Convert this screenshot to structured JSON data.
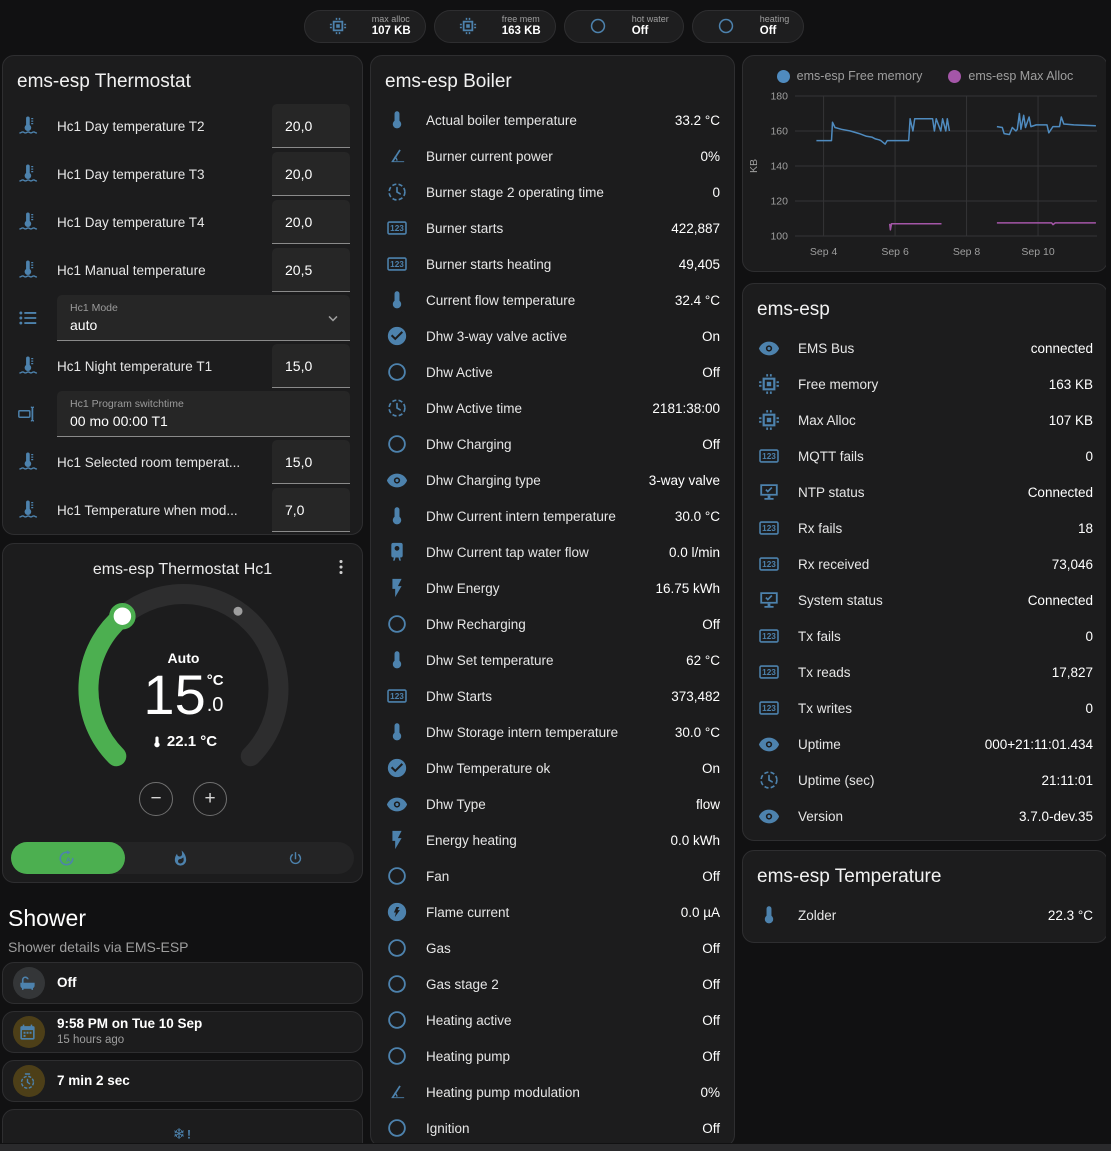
{
  "colors": {
    "accent_green": "#4caf50",
    "entity_icon_blue": "#4d82ad",
    "chip_icon_blue": "#2196f3",
    "chip_icon_gray": "#9e9e9e",
    "amber": "#ffc107",
    "tile_gray": "#9da0a2",
    "snowflake_blue": "#4d8fd1",
    "track_gray": "#2d2d2e",
    "knob_white": "#ffffff"
  },
  "header": {
    "chips": [
      {
        "icon": "chip",
        "color": "blue",
        "label": "max alloc",
        "value": "107 KB"
      },
      {
        "icon": "chip",
        "color": "blue",
        "label": "free mem",
        "value": "163 KB"
      },
      {
        "icon": "circle",
        "color": "gray",
        "label": "hot water",
        "value": "Off"
      },
      {
        "icon": "circle",
        "color": "gray",
        "label": "heating",
        "value": "Off"
      }
    ]
  },
  "thermostat": {
    "title": "ems-esp Thermostat",
    "rows": [
      {
        "type": "number",
        "icon": "thermometer-waves",
        "label": "Hc1 Day temperature T2",
        "value": "20,0"
      },
      {
        "type": "number",
        "icon": "thermometer-waves",
        "label": "Hc1 Day temperature T3",
        "value": "20,0"
      },
      {
        "type": "number",
        "icon": "thermometer-waves",
        "label": "Hc1 Day temperature T4",
        "value": "20,0"
      },
      {
        "type": "number",
        "icon": "thermometer-waves",
        "label": "Hc1 Manual temperature",
        "value": "20,5"
      },
      {
        "type": "select",
        "icon": "list",
        "field_label": "Hc1 Mode",
        "value": "auto"
      },
      {
        "type": "number",
        "icon": "thermometer-waves",
        "label": "Hc1 Night temperature T1",
        "value": "15,0"
      },
      {
        "type": "text",
        "icon": "form-textbox",
        "field_label": "Hc1 Program switchtime",
        "value": "00 mo 00:00 T1"
      },
      {
        "type": "number",
        "icon": "thermometer-waves",
        "label": "Hc1 Selected room temperat...",
        "value": "15,0"
      },
      {
        "type": "number",
        "icon": "thermometer-waves",
        "label": "Hc1 Temperature when mod...",
        "value": "7,0"
      }
    ]
  },
  "dial": {
    "title": "ems-esp Thermostat Hc1",
    "mode_label": "Auto",
    "target_whole": "15",
    "target_decimal": ".0",
    "target_unit": "°C",
    "current_temperature": "22.1 °C",
    "minus_label": "−",
    "plus_label": "+",
    "modes": [
      {
        "icon": "auto",
        "active": true
      },
      {
        "icon": "fire",
        "active": false
      },
      {
        "icon": "power",
        "active": false
      }
    ]
  },
  "shower": {
    "title": "Shower",
    "subtitle": "Shower details via EMS-ESP",
    "tiles": [
      {
        "icon": "bathtub",
        "color": "gray",
        "label": "Off"
      },
      {
        "icon": "calendar",
        "color": "amber",
        "label": "9:58 PM on Tue 10 Sep",
        "secondary": "15 hours ago"
      },
      {
        "icon": "timer",
        "color": "amber",
        "label": "7 min 2 sec"
      },
      {
        "icon": "snowflake-alert",
        "color": "blue",
        "centered": true
      }
    ]
  },
  "boiler": {
    "title": "ems-esp Boiler",
    "rows": [
      {
        "icon": "thermometer",
        "label": "Actual boiler temperature",
        "value": "33.2 °C"
      },
      {
        "icon": "angle",
        "label": "Burner current power",
        "value": "0%"
      },
      {
        "icon": "clock",
        "label": "Burner stage 2 operating time",
        "value": "0"
      },
      {
        "icon": "counter",
        "label": "Burner starts",
        "value": "422,887"
      },
      {
        "icon": "counter",
        "label": "Burner starts heating",
        "value": "49,405"
      },
      {
        "icon": "thermometer",
        "label": "Current flow temperature",
        "value": "32.4 °C"
      },
      {
        "icon": "check-circle",
        "label": "Dhw 3-way valve active",
        "value": "On"
      },
      {
        "icon": "circle",
        "label": "Dhw Active",
        "value": "Off"
      },
      {
        "icon": "clock",
        "label": "Dhw Active time",
        "value": "2181:38:00"
      },
      {
        "icon": "circle",
        "label": "Dhw Charging",
        "value": "Off"
      },
      {
        "icon": "eye",
        "label": "Dhw Charging type",
        "value": "3-way valve"
      },
      {
        "icon": "thermometer",
        "label": "Dhw Current intern temperature",
        "value": "30.0 °C"
      },
      {
        "icon": "water-heater",
        "label": "Dhw Current tap water flow",
        "value": "0.0 l/min"
      },
      {
        "icon": "flash",
        "label": "Dhw Energy",
        "value": "16.75 kWh"
      },
      {
        "icon": "circle",
        "label": "Dhw Recharging",
        "value": "Off"
      },
      {
        "icon": "thermometer",
        "label": "Dhw Set temperature",
        "value": "62 °C"
      },
      {
        "icon": "counter",
        "label": "Dhw Starts",
        "value": "373,482"
      },
      {
        "icon": "thermometer",
        "label": "Dhw Storage intern temperature",
        "value": "30.0 °C"
      },
      {
        "icon": "check-circle",
        "label": "Dhw Temperature ok",
        "value": "On"
      },
      {
        "icon": "eye",
        "label": "Dhw Type",
        "value": "flow"
      },
      {
        "icon": "flash",
        "label": "Energy heating",
        "value": "0.0 kWh"
      },
      {
        "icon": "circle",
        "label": "Fan",
        "value": "Off"
      },
      {
        "icon": "flash-circle",
        "label": "Flame current",
        "value": "0.0 µA"
      },
      {
        "icon": "circle",
        "label": "Gas",
        "value": "Off"
      },
      {
        "icon": "circle",
        "label": "Gas stage 2",
        "value": "Off"
      },
      {
        "icon": "circle",
        "label": "Heating active",
        "value": "Off"
      },
      {
        "icon": "circle",
        "label": "Heating pump",
        "value": "Off"
      },
      {
        "icon": "angle",
        "label": "Heating pump modulation",
        "value": "0%"
      },
      {
        "icon": "circle",
        "label": "Ignition",
        "value": "Off"
      }
    ]
  },
  "esp": {
    "title": "ems-esp",
    "rows": [
      {
        "icon": "eye",
        "label": "EMS Bus",
        "value": "connected"
      },
      {
        "icon": "chip",
        "label": "Free memory",
        "value": "163 KB"
      },
      {
        "icon": "chip",
        "label": "Max Alloc",
        "value": "107 KB"
      },
      {
        "icon": "counter",
        "label": "MQTT fails",
        "value": "0"
      },
      {
        "icon": "monitor-check",
        "label": "NTP status",
        "value": "Connected"
      },
      {
        "icon": "counter",
        "label": "Rx fails",
        "value": "18"
      },
      {
        "icon": "counter",
        "label": "Rx received",
        "value": "73,046"
      },
      {
        "icon": "monitor-check",
        "label": "System status",
        "value": "Connected"
      },
      {
        "icon": "counter",
        "label": "Tx fails",
        "value": "0"
      },
      {
        "icon": "counter",
        "label": "Tx reads",
        "value": "17,827"
      },
      {
        "icon": "counter",
        "label": "Tx writes",
        "value": "0"
      },
      {
        "icon": "eye",
        "label": "Uptime",
        "value": "000+21:11:01.434"
      },
      {
        "icon": "clock",
        "label": "Uptime (sec)",
        "value": "21:11:01"
      },
      {
        "icon": "eye",
        "label": "Version",
        "value": "3.7.0-dev.35"
      }
    ]
  },
  "temperature": {
    "title": "ems-esp Temperature",
    "rows": [
      {
        "icon": "thermometer",
        "label": "Zolder",
        "value": "22.3 °C"
      }
    ]
  },
  "chart_data": {
    "type": "line",
    "title": "",
    "xlabel": "",
    "ylabel": "KB",
    "ylim": [
      100,
      180
    ],
    "y_ticks": [
      100,
      120,
      140,
      160,
      180
    ],
    "xlim": [
      3.2,
      11.65
    ],
    "x_ticks": [
      {
        "day": 4,
        "label": "Sep 4"
      },
      {
        "day": 6,
        "label": "Sep 6"
      },
      {
        "day": 8,
        "label": "Sep 8"
      },
      {
        "day": 10,
        "label": "Sep 10"
      }
    ],
    "grid": true,
    "legend_position": "top",
    "series": [
      {
        "name": "ems-esp Free memory",
        "color": "#4f8bbf",
        "segments": [
          [
            [
              3.8,
              154.5
            ],
            [
              4.22,
              154.5
            ],
            [
              4.25,
              165
            ],
            [
              4.32,
              162
            ],
            [
              4.5,
              161
            ],
            [
              4.75,
              160
            ],
            [
              5.0,
              158.5
            ],
            [
              5.2,
              157
            ],
            [
              5.35,
              156.5
            ],
            [
              5.45,
              155.5
            ],
            [
              5.55,
              155
            ],
            [
              5.6,
              154.5
            ],
            [
              5.72,
              152.5
            ],
            [
              5.78,
              154.5
            ],
            [
              6.38,
              154.5
            ],
            [
              6.42,
              167
            ],
            [
              6.5,
              160
            ],
            [
              6.55,
              167
            ],
            [
              7.05,
              167
            ],
            [
              7.1,
              160
            ],
            [
              7.15,
              167
            ],
            [
              7.28,
              160
            ],
            [
              7.33,
              167
            ],
            [
              7.42,
              160
            ],
            [
              7.46,
              167
            ],
            [
              7.52,
              160
            ]
          ],
          [
            [
              8.85,
              162.5
            ],
            [
              9.0,
              162
            ],
            [
              9.05,
              158.5
            ],
            [
              9.2,
              158
            ],
            [
              9.28,
              162
            ],
            [
              9.38,
              160
            ],
            [
              9.42,
              161
            ],
            [
              9.48,
              170
            ],
            [
              9.52,
              161
            ],
            [
              9.6,
              169
            ],
            [
              9.65,
              162
            ],
            [
              9.75,
              168
            ],
            [
              9.8,
              162.5
            ],
            [
              9.95,
              163.5
            ],
            [
              10.25,
              163.5
            ],
            [
              10.3,
              159
            ],
            [
              10.42,
              162.5
            ],
            [
              10.6,
              162.5
            ],
            [
              10.65,
              168
            ],
            [
              10.72,
              164
            ],
            [
              11.0,
              163.5
            ],
            [
              11.62,
              163
            ]
          ]
        ]
      },
      {
        "name": "ems-esp Max Alloc",
        "color": "#a456a8",
        "segments": [
          [
            [
              5.85,
              107
            ],
            [
              5.87,
              103.5
            ],
            [
              5.9,
              107
            ],
            [
              7.3,
              107
            ]
          ],
          [
            [
              8.85,
              107.5
            ],
            [
              10.38,
              107.5
            ],
            [
              10.42,
              106.5
            ],
            [
              10.48,
              107.5
            ],
            [
              11.62,
              107.5
            ]
          ]
        ]
      }
    ]
  }
}
